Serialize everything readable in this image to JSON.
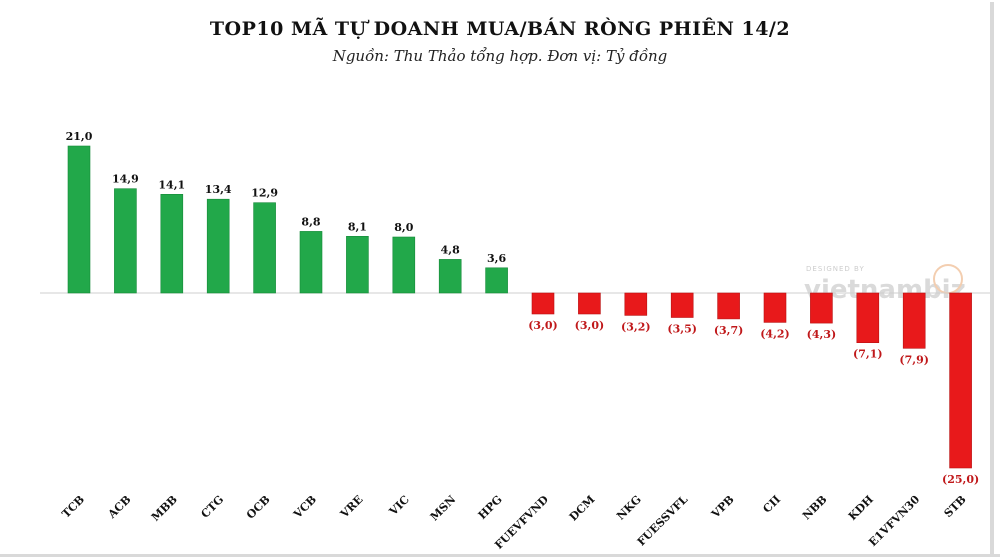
{
  "chart_data": {
    "type": "bar",
    "title": "TOP10 MÃ TỰ DOANH MUA/BÁN RÒNG PHIÊN 14/2",
    "subtitle": "Nguồn: Thu Thảo tổng hợp. Đơn vị: Tỷ đồng",
    "categories": [
      "TCB",
      "ACB",
      "MBB",
      "CTG",
      "OCB",
      "VCB",
      "VRE",
      "VIC",
      "MSN",
      "HPG",
      "FUEVFVND",
      "DCM",
      "NKG",
      "FUESSVFL",
      "VPB",
      "CII",
      "NBB",
      "KDH",
      "E1VFVN30",
      "STB"
    ],
    "values": [
      21.0,
      14.9,
      14.1,
      13.4,
      12.9,
      8.8,
      8.1,
      8.0,
      4.8,
      3.6,
      -3.0,
      -3.0,
      -3.2,
      -3.5,
      -3.7,
      -4.2,
      -4.3,
      -7.1,
      -7.9,
      -25.0
    ],
    "labels": [
      "21,0",
      "14,9",
      "14,1",
      "13,4",
      "12,9",
      "8,8",
      "8,1",
      "8,0",
      "4,8",
      "3,6",
      "(3,0)",
      "(3,0)",
      "(3,2)",
      "(3,5)",
      "(3,7)",
      "(4,2)",
      "(4,3)",
      "(7,1)",
      "(7,9)",
      "(25,0)"
    ],
    "positive_color": "#22a84a",
    "negative_color": "#e8191b",
    "negative_label_color": "#c0181a",
    "grid": false,
    "legend": "none"
  },
  "watermark": {
    "small": "DESIGNED BY",
    "brand": "vietnambiz"
  }
}
